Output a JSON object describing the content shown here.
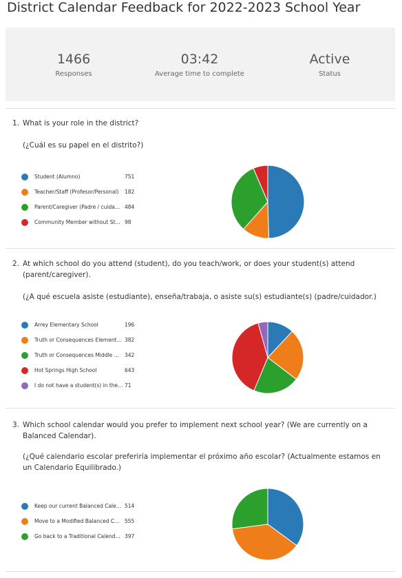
{
  "title": "District Calendar Feedback for 2022-2023 School Year",
  "stats": [
    {
      "value": 1466,
      "label": "Responses"
    },
    {
      "value": "03:42",
      "label": "Average time to complete"
    },
    {
      "value": "Active",
      "label": "Status"
    }
  ],
  "questions": [
    {
      "number": "1.",
      "text": "What is your role in the district?",
      "subtext": "(¿Cuál es su papel en el distrito?)",
      "chart": {
        "type": "pie",
        "categories": [
          "Student (Alumno)",
          "Teacher/Staff (Profesor/Personal)",
          "Parent/Caregiver (Padre / cuida…",
          "Community Member without St…"
        ],
        "values": [
          751,
          182,
          484,
          98
        ],
        "colors": [
          "#2a7ab8",
          "#ef7d1a",
          "#2ca02c",
          "#d62728"
        ]
      }
    },
    {
      "number": "2.",
      "text": "At which school do you attend (student), do you teach/work, or does your student(s) attend (parent/caregiver).",
      "subtext": "(¿A qué escuela asiste (estudiante), enseña/trabaja, o asiste su(s) estudiante(s) (padre/cuidador.)",
      "chart": {
        "type": "pie",
        "categories": [
          "Arrey Elementary School",
          "Truth or Consequences Element…",
          "Truth or Consequences Middle …",
          "Hot Springs High School",
          "I do not have a student(s) in the…"
        ],
        "values": [
          196,
          382,
          342,
          643,
          71
        ],
        "colors": [
          "#2a7ab8",
          "#ef7d1a",
          "#2ca02c",
          "#d62728",
          "#9467bd"
        ]
      }
    },
    {
      "number": "3.",
      "text": "Which school calendar would you prefer to implement next school year? (We are currently on a Balanced Calendar).",
      "subtext": "(¿Qué calendario escolar preferiría implementar el próximo año escolar? (Actualmente estamos en un Calendario Equilibrado.)",
      "chart": {
        "type": "pie",
        "categories": [
          "Keep our current Balanced Cale…",
          "Move to a Modified Balanced C…",
          "Go back to a Traditional Calend…"
        ],
        "values": [
          514,
          555,
          397
        ],
        "colors": [
          "#2a7ab8",
          "#ef7d1a",
          "#2ca02c"
        ]
      }
    }
  ]
}
